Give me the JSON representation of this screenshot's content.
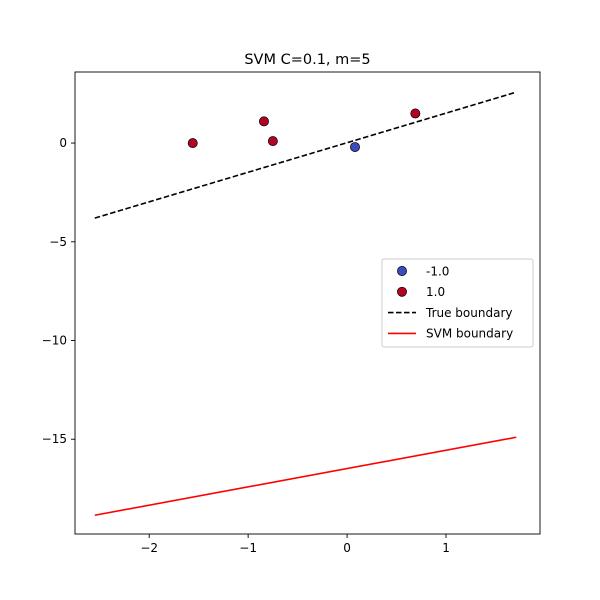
{
  "chart_data": {
    "type": "scatter",
    "title": "SVM C=0.1, m=5",
    "xlabel": "",
    "ylabel": "",
    "xlim": [
      -2.75,
      1.95
    ],
    "ylim": [
      -19.8,
      3.6
    ],
    "xticks": [
      -2,
      -1,
      0,
      1
    ],
    "xtick_labels": [
      "−2",
      "−1",
      "0",
      "1"
    ],
    "yticks": [
      0,
      -5,
      -10,
      -15
    ],
    "ytick_labels": [
      "0",
      "−5",
      "−10",
      "−15"
    ],
    "grid": false,
    "legend_position": "center-right",
    "series": [
      {
        "name": "-1.0",
        "kind": "points",
        "color": "#3b4cc0",
        "points": [
          [
            0.08,
            -0.2
          ]
        ]
      },
      {
        "name": "1.0",
        "kind": "points",
        "color": "#b40426",
        "points": [
          [
            -1.56,
            0.0
          ],
          [
            -0.84,
            1.1
          ],
          [
            -0.75,
            0.1
          ],
          [
            0.69,
            1.5
          ]
        ]
      },
      {
        "name": "True boundary",
        "kind": "line",
        "style": "dashed",
        "color": "#000000",
        "points": [
          [
            -2.55,
            -3.8
          ],
          [
            1.69,
            2.55
          ]
        ]
      },
      {
        "name": "SVM boundary",
        "kind": "line",
        "style": "solid",
        "color": "#ff0000",
        "points": [
          [
            -2.55,
            -18.85
          ],
          [
            1.71,
            -14.9
          ]
        ]
      }
    ]
  }
}
